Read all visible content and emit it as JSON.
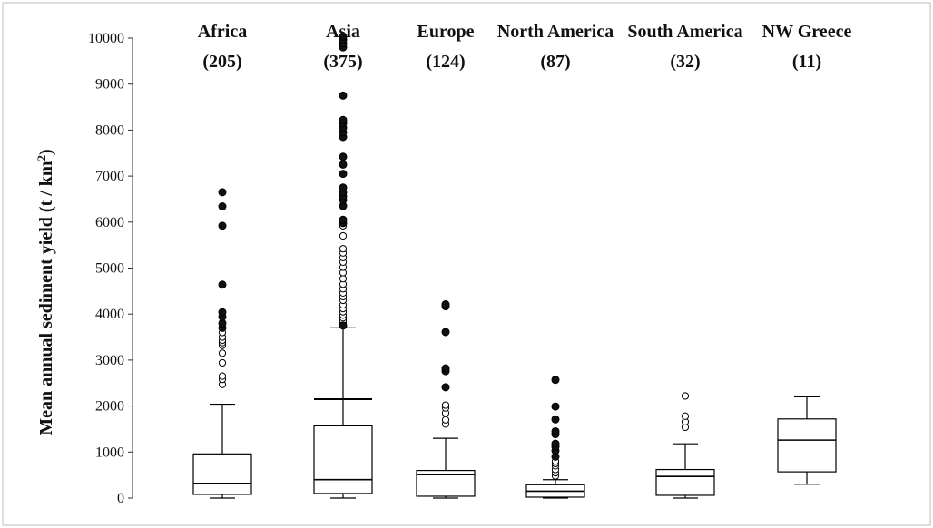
{
  "chart_data": {
    "type": "boxplot",
    "ylabel": "Mean annual sediment yield (t / km",
    "ylabel_superscript": "2",
    "ylabel_close": ")",
    "ylim": [
      0,
      10000
    ],
    "yticks": [
      "0",
      "1000",
      "2000",
      "3000",
      "4000",
      "5000",
      "6000",
      "7000",
      "8000",
      "9000",
      "10000"
    ],
    "grid": false,
    "colors": {
      "box": "#000000",
      "outlier_fill": "#111111",
      "background": "#ffffff"
    },
    "categories": [
      {
        "name": "Africa",
        "n": "(205)",
        "min": 0,
        "q1": 80,
        "median": 320,
        "q3": 960,
        "whisker_high": 2040,
        "outliers_open": [
          2470,
          2580,
          2650,
          2940,
          3150,
          3320,
          3380,
          3430,
          3500,
          3600
        ],
        "outliers_extreme": [
          3700,
          3800,
          3940,
          4040,
          4640,
          5920,
          6340,
          6650
        ]
      },
      {
        "name": "Asia",
        "n": "(375)",
        "min": 0,
        "q1": 100,
        "median": 400,
        "q3": 1570,
        "whisker_high": 3700,
        "mean_marker": 2150,
        "outliers_open": [
          3800,
          3860,
          3920,
          3980,
          4050,
          4120,
          4200,
          4300,
          4380,
          4460,
          4550,
          4650,
          4770,
          4900,
          5020,
          5130,
          5230,
          5330,
          5420,
          5700,
          5920
        ],
        "outliers_extreme": [
          3750,
          5980,
          6050,
          6350,
          6480,
          6560,
          6650,
          6750,
          7050,
          7250,
          7420,
          7850,
          7950,
          8050,
          8150,
          8220,
          8750,
          9800,
          9880,
          9960,
          10030
        ]
      },
      {
        "name": "Europe",
        "n": "(124)",
        "min": 0,
        "q1": 40,
        "median": 510,
        "q3": 600,
        "whisker_high": 1300,
        "outliers_open": [
          1610,
          1700,
          1850,
          1960,
          2020
        ],
        "outliers_extreme": [
          2410,
          2760,
          2820,
          3610,
          4170,
          4210
        ]
      },
      {
        "name": "North America",
        "n": "(87)",
        "min": 0,
        "q1": 20,
        "median": 150,
        "q3": 290,
        "whisker_high": 400,
        "outliers_open": [
          480,
          550,
          620,
          700,
          750,
          800
        ],
        "outliers_extreme": [
          900,
          1030,
          1120,
          1180,
          1390,
          1450,
          1710,
          1990,
          2570
        ]
      },
      {
        "name": "South America",
        "n": "(32)",
        "min": 0,
        "q1": 60,
        "median": 470,
        "q3": 620,
        "whisker_high": 1180,
        "outliers_open": [
          1540,
          1660,
          1780,
          2220
        ],
        "outliers_extreme": []
      },
      {
        "name": "NW Greece",
        "n": "(11)",
        "min": 300,
        "q1": 570,
        "median": 1260,
        "q3": 1720,
        "whisker_high": 2200,
        "outliers_open": [],
        "outliers_extreme": []
      }
    ]
  }
}
